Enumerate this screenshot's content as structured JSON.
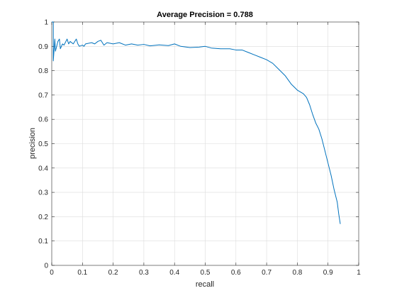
{
  "chart_data": {
    "type": "line",
    "title": "Average Precision = 0.788",
    "xlabel": "recall",
    "ylabel": "precision",
    "xlim": [
      0,
      1
    ],
    "ylim": [
      0,
      1
    ],
    "xticks": [
      "0",
      "0.1",
      "0.2",
      "0.3",
      "0.4",
      "0.5",
      "0.6",
      "0.7",
      "0.8",
      "0.9",
      "1"
    ],
    "yticks": [
      "0",
      "0.1",
      "0.2",
      "0.3",
      "0.4",
      "0.5",
      "0.6",
      "0.7",
      "0.8",
      "0.9",
      "1"
    ],
    "grid": true,
    "line_color": "#0072BD",
    "series": [
      {
        "points": [
          [
            0.0,
            1.0
          ],
          [
            0.005,
            1.0
          ],
          [
            0.005,
            0.84
          ],
          [
            0.01,
            0.93
          ],
          [
            0.012,
            0.88
          ],
          [
            0.02,
            0.92
          ],
          [
            0.025,
            0.93
          ],
          [
            0.028,
            0.89
          ],
          [
            0.035,
            0.91
          ],
          [
            0.04,
            0.905
          ],
          [
            0.05,
            0.93
          ],
          [
            0.055,
            0.91
          ],
          [
            0.06,
            0.92
          ],
          [
            0.07,
            0.91
          ],
          [
            0.08,
            0.93
          ],
          [
            0.085,
            0.91
          ],
          [
            0.09,
            0.9
          ],
          [
            0.1,
            0.905
          ],
          [
            0.105,
            0.9
          ],
          [
            0.11,
            0.91
          ],
          [
            0.13,
            0.915
          ],
          [
            0.14,
            0.91
          ],
          [
            0.15,
            0.92
          ],
          [
            0.16,
            0.925
          ],
          [
            0.17,
            0.905
          ],
          [
            0.18,
            0.915
          ],
          [
            0.2,
            0.91
          ],
          [
            0.22,
            0.915
          ],
          [
            0.24,
            0.905
          ],
          [
            0.26,
            0.91
          ],
          [
            0.28,
            0.905
          ],
          [
            0.3,
            0.908
          ],
          [
            0.32,
            0.902
          ],
          [
            0.35,
            0.906
          ],
          [
            0.38,
            0.903
          ],
          [
            0.4,
            0.91
          ],
          [
            0.42,
            0.9
          ],
          [
            0.45,
            0.895
          ],
          [
            0.48,
            0.897
          ],
          [
            0.5,
            0.9
          ],
          [
            0.52,
            0.893
          ],
          [
            0.55,
            0.89
          ],
          [
            0.58,
            0.89
          ],
          [
            0.6,
            0.885
          ],
          [
            0.62,
            0.885
          ],
          [
            0.64,
            0.875
          ],
          [
            0.66,
            0.865
          ],
          [
            0.68,
            0.855
          ],
          [
            0.7,
            0.845
          ],
          [
            0.72,
            0.83
          ],
          [
            0.74,
            0.805
          ],
          [
            0.76,
            0.78
          ],
          [
            0.78,
            0.745
          ],
          [
            0.8,
            0.72
          ],
          [
            0.82,
            0.705
          ],
          [
            0.83,
            0.69
          ],
          [
            0.84,
            0.66
          ],
          [
            0.85,
            0.62
          ],
          [
            0.86,
            0.585
          ],
          [
            0.87,
            0.56
          ],
          [
            0.88,
            0.52
          ],
          [
            0.89,
            0.47
          ],
          [
            0.9,
            0.42
          ],
          [
            0.91,
            0.37
          ],
          [
            0.92,
            0.31
          ],
          [
            0.93,
            0.26
          ],
          [
            0.935,
            0.21
          ],
          [
            0.94,
            0.17
          ]
        ]
      }
    ]
  }
}
